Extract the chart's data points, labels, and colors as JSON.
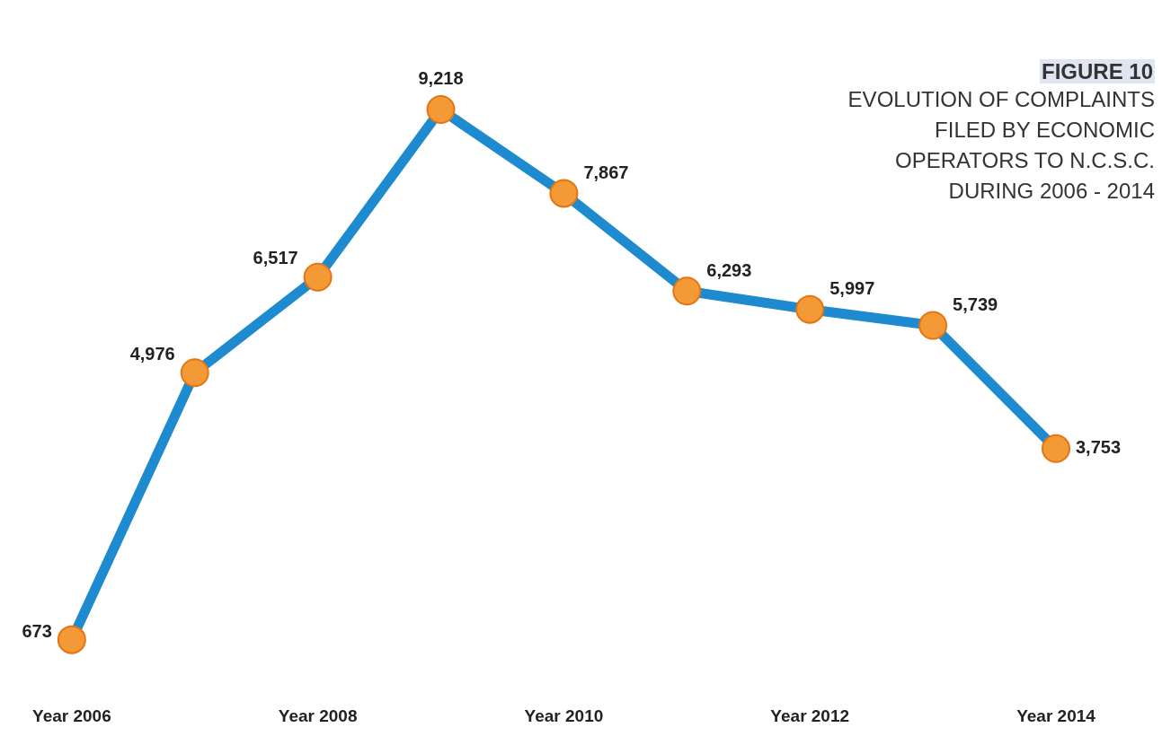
{
  "chart_data": {
    "type": "line",
    "title": "FIGURE 10",
    "subtitle": "EVOLUTION OF COMPLAINTS FILED BY ECONOMIC OPERATORS TO N.C.S.C. DURING 2006 - 2014",
    "categories": [
      "Year 2006",
      null,
      "Year 2008",
      null,
      "Year 2010",
      null,
      "Year 2012",
      null,
      "Year 2014"
    ],
    "series": [
      {
        "color": "#1e8ad0",
        "values": [
          673,
          4976,
          6517,
          9218,
          7867,
          6293,
          5997,
          5739,
          3753
        ],
        "value_labels": [
          "673",
          "4,976",
          "6,517",
          "9,218",
          "7,867",
          "6,293",
          "5,997",
          "5,739",
          "3,753"
        ]
      }
    ],
    "marker": "circle",
    "line_style": "solid",
    "grid": false,
    "legend": false
  }
}
